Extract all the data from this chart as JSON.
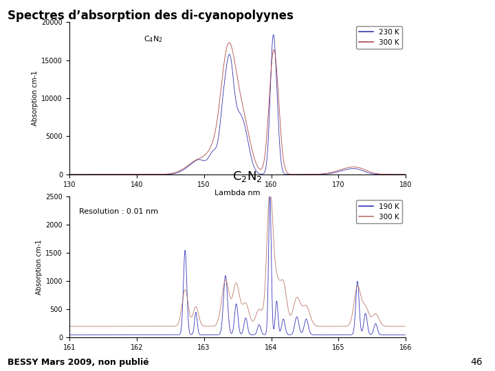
{
  "title": "Spectres d’absorption des di-cyanopolyynes",
  "title_color": "#000000",
  "title_fontsize": 12,
  "footer_text": "BESSY Mars 2009, non publié",
  "footer_page": "46",
  "bg_color": "#FFFFFF",
  "plot1": {
    "label_text": "C$_4$N$_2$",
    "xlabel": "Lambda nm",
    "ylabel": "Absorption cm-1",
    "xlim": [
      130,
      180
    ],
    "ylim": [
      0,
      20000
    ],
    "yticks": [
      0,
      5000,
      10000,
      15000,
      20000
    ],
    "xticks": [
      130,
      140,
      150,
      160,
      170,
      180
    ],
    "color_230K": "#3333AA",
    "color_300K": "#AA4444",
    "label_230K": "230 K",
    "label_300K": "300 K"
  },
  "plot2": {
    "label_text": "C$_2$N$_2$",
    "annotation": "Resolution : 0.01 nm",
    "ylabel": "Absorption cm-1",
    "xlim": [
      161,
      166
    ],
    "ylim": [
      0,
      2500
    ],
    "yticks": [
      0,
      500,
      1000,
      1500,
      2000,
      2500
    ],
    "xticks": [
      161,
      162,
      163,
      164,
      165,
      166
    ],
    "color_190K": "#3333BB",
    "color_300K": "#BB7766",
    "label_190K": "190 K",
    "label_300K": "300 K"
  }
}
